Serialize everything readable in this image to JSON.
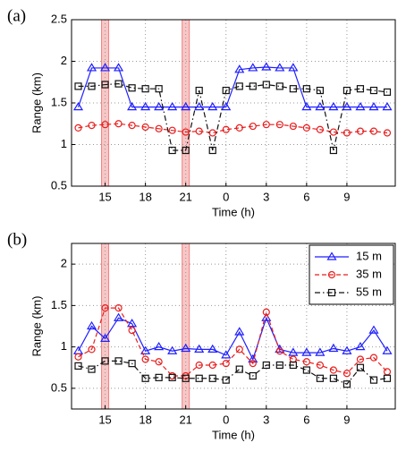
{
  "chart_data": [
    {
      "type": "line",
      "panel_label": "(a)",
      "xlabel": "Time (h)",
      "ylabel": "Range (km)",
      "x": [
        13,
        14,
        15,
        16,
        17,
        18,
        19,
        20,
        21,
        22,
        23,
        24,
        25,
        26,
        27,
        28,
        29,
        30,
        31,
        32,
        33,
        34,
        35,
        36
      ],
      "xlim": [
        12.5,
        36.6
      ],
      "ylim": [
        0.5,
        2.5
      ],
      "yticks": [
        0.5,
        1,
        1.5,
        2,
        2.5
      ],
      "xticks": [
        15,
        18,
        21,
        {
          "value": 24,
          "label": "0"
        },
        {
          "value": 27,
          "label": "3"
        },
        {
          "value": 30,
          "label": "6"
        },
        {
          "value": 33,
          "label": "9"
        }
      ],
      "grid": true,
      "highlight_x": [
        15,
        21
      ],
      "series": [
        {
          "color": "#1f1fff",
          "marker": "triangle",
          "dash": "solid",
          "values": [
            1.45,
            1.92,
            1.92,
            1.92,
            1.45,
            1.45,
            1.45,
            1.45,
            1.45,
            1.45,
            1.45,
            1.45,
            1.9,
            1.92,
            1.93,
            1.92,
            1.92,
            1.45,
            1.45,
            1.45,
            1.45,
            1.45,
            1.45,
            1.45
          ]
        },
        {
          "color": "#e81f1f",
          "marker": "circle",
          "dash": "dashed",
          "values": [
            1.2,
            1.23,
            1.24,
            1.25,
            1.23,
            1.21,
            1.19,
            1.17,
            1.15,
            1.16,
            1.14,
            1.18,
            1.2,
            1.22,
            1.24,
            1.24,
            1.22,
            1.2,
            1.18,
            1.15,
            1.14,
            1.16,
            1.16,
            1.14
          ]
        },
        {
          "color": "#111111",
          "marker": "square",
          "dash": "dashdot",
          "values": [
            1.7,
            1.7,
            1.72,
            1.73,
            1.68,
            1.67,
            1.67,
            0.93,
            0.93,
            1.65,
            0.93,
            1.65,
            1.7,
            1.7,
            1.72,
            1.7,
            1.67,
            1.67,
            1.65,
            0.93,
            1.65,
            1.67,
            1.65,
            1.63
          ]
        }
      ]
    },
    {
      "type": "line",
      "panel_label": "(b)",
      "xlabel": "Time (h)",
      "ylabel": "Range (km)",
      "x": [
        13,
        14,
        15,
        16,
        17,
        18,
        19,
        20,
        21,
        22,
        23,
        24,
        25,
        26,
        27,
        28,
        29,
        30,
        31,
        32,
        33,
        34,
        35,
        36
      ],
      "xlim": [
        12.5,
        36.6
      ],
      "ylim": [
        0.25,
        2.25
      ],
      "yticks": [
        0.5,
        1,
        1.5,
        2
      ],
      "xticks": [
        15,
        18,
        21,
        {
          "value": 24,
          "label": "0"
        },
        {
          "value": 27,
          "label": "3"
        },
        {
          "value": 30,
          "label": "6"
        },
        {
          "value": 33,
          "label": "9"
        }
      ],
      "grid": true,
      "highlight_x": [
        15,
        21
      ],
      "legend": "upper right",
      "series": [
        {
          "name": "15 m",
          "color": "#1f1fff",
          "marker": "triangle",
          "dash": "solid",
          "values": [
            0.95,
            1.25,
            1.1,
            1.35,
            1.28,
            0.95,
            1.0,
            0.95,
            0.98,
            0.97,
            0.97,
            0.9,
            1.18,
            0.85,
            1.35,
            0.97,
            0.93,
            0.93,
            0.93,
            0.98,
            0.95,
            1.0,
            1.2,
            0.95
          ]
        },
        {
          "name": "35 m",
          "color": "#e81f1f",
          "marker": "circle",
          "dash": "dashed",
          "values": [
            0.88,
            0.97,
            1.47,
            1.47,
            1.2,
            0.85,
            0.82,
            0.65,
            0.65,
            0.78,
            0.78,
            0.8,
            0.97,
            0.8,
            1.42,
            0.95,
            0.85,
            0.82,
            0.78,
            0.72,
            0.68,
            0.85,
            0.87,
            0.7
          ]
        },
        {
          "name": "55 m",
          "color": "#111111",
          "marker": "square",
          "dash": "dashdot",
          "values": [
            0.77,
            0.73,
            0.83,
            0.83,
            0.8,
            0.62,
            0.63,
            0.63,
            0.62,
            0.62,
            0.62,
            0.6,
            0.73,
            0.65,
            0.78,
            0.78,
            0.78,
            0.72,
            0.62,
            0.62,
            0.55,
            0.75,
            0.6,
            0.62
          ]
        }
      ]
    }
  ]
}
